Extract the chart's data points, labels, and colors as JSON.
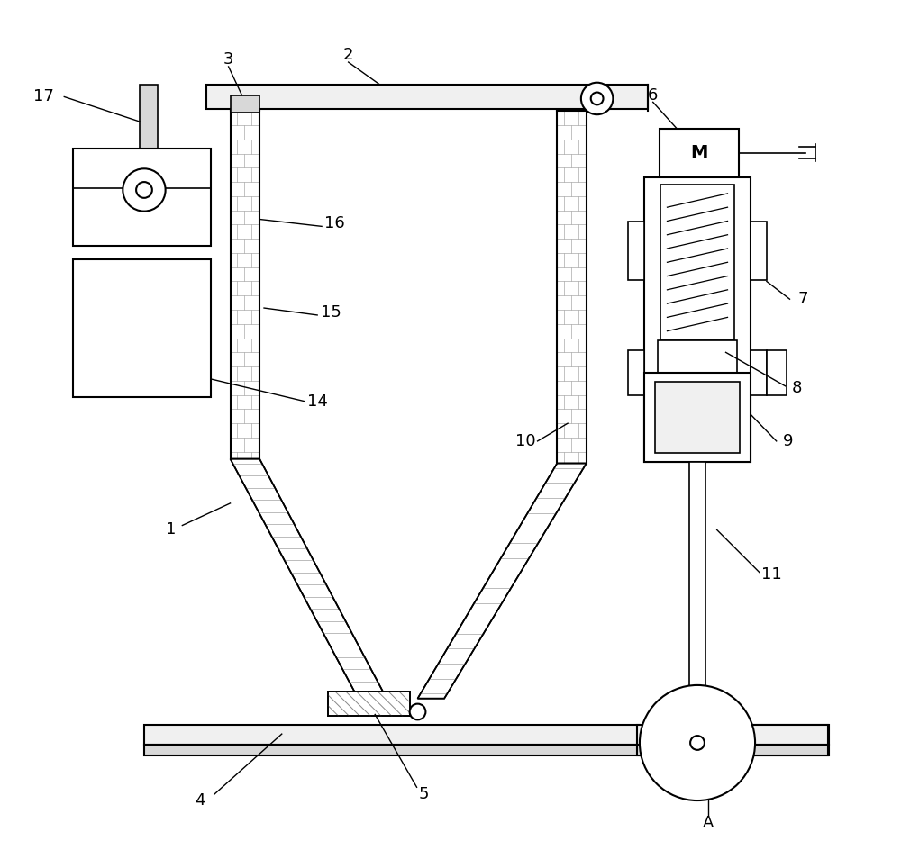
{
  "bg_color": "#ffffff",
  "line_color": "#000000",
  "fig_width": 10.0,
  "fig_height": 9.64,
  "label_fontsize": 13
}
